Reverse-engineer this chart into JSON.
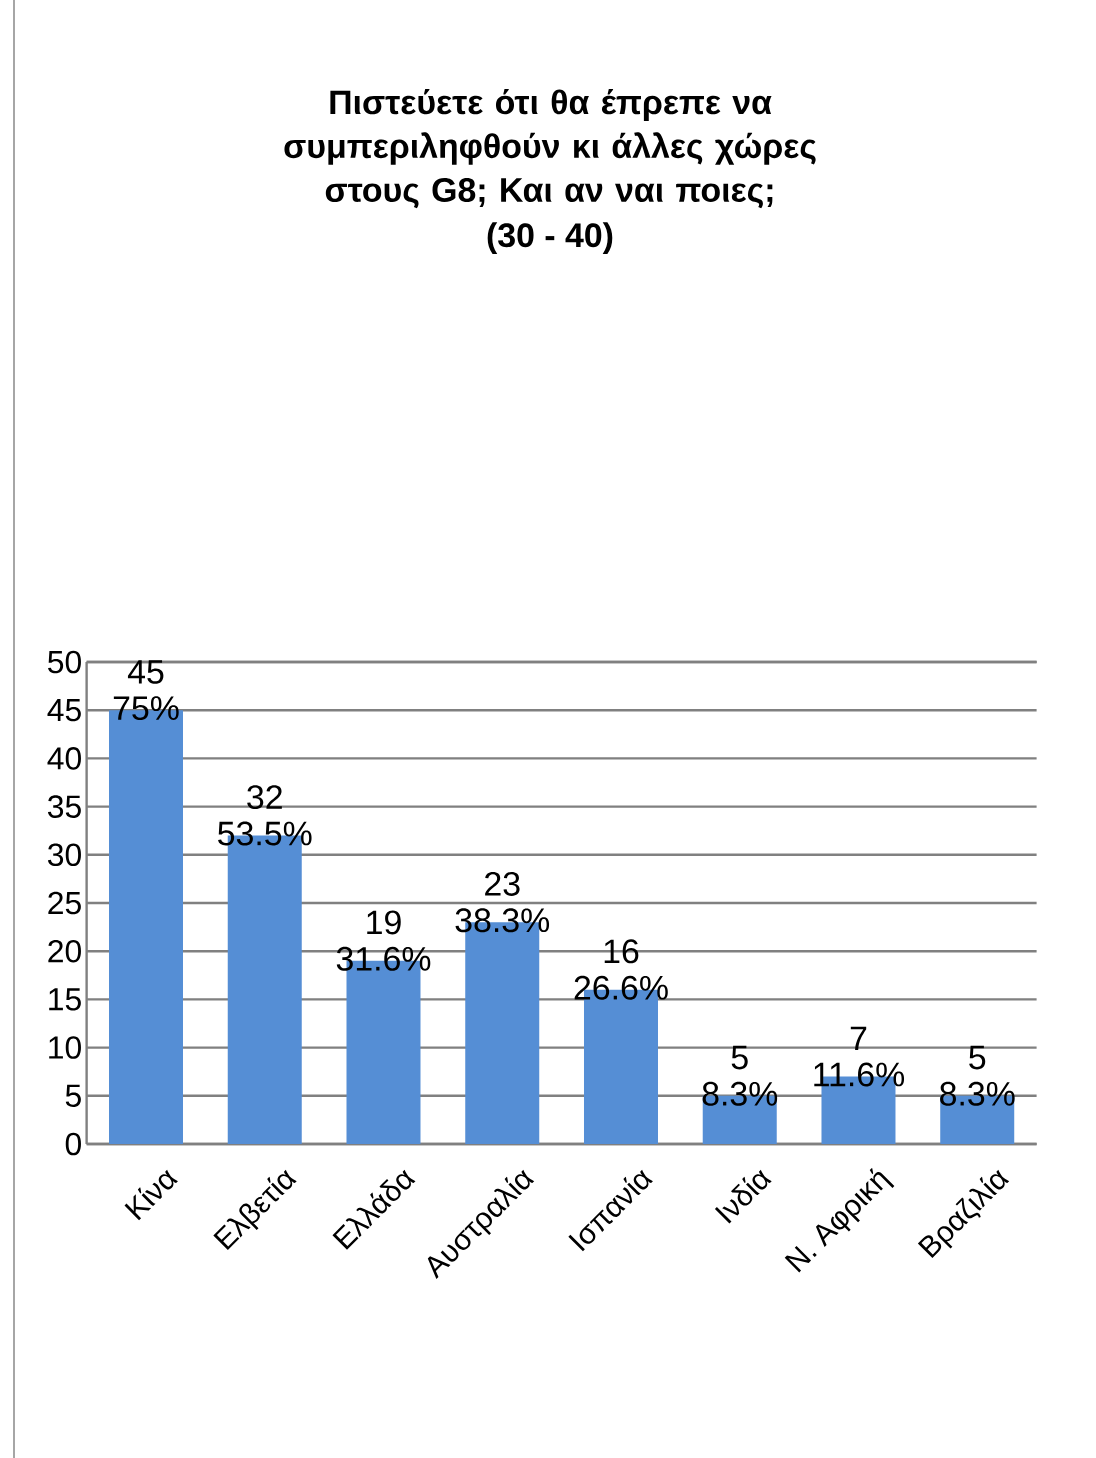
{
  "chart_data": {
    "type": "bar",
    "title": "Πιστεύετε ότι θα έπρεπε να συμπεριληφθούν κι άλλες χώρες στους G8; Και αν ναι ποιες;",
    "subtitle": "(30 - 40)",
    "categories": [
      "Κίνα",
      "Ελβετία",
      "Ελλάδα",
      "Αυστραλία",
      "Ισπανία",
      "Ινδία",
      "Ν. Αφρική",
      "Βραζιλία"
    ],
    "values": [
      45,
      32,
      19,
      23,
      16,
      5,
      7,
      5
    ],
    "color": "#558ed5",
    "ylim": [
      0,
      50
    ],
    "yticks": [
      0,
      5,
      10,
      15,
      20,
      25,
      30,
      35,
      40,
      45,
      50
    ],
    "grid": "y",
    "data_labels": true,
    "annotations": [
      {
        "text": "75%",
        "x": "Κίνα",
        "y": 45
      },
      {
        "text": "53.5%",
        "x": "Ελβετία",
        "y": 32
      },
      {
        "text": "31.6%",
        "x": "Ελλάδα",
        "y": 19
      },
      {
        "text": "38.3%",
        "x": "Αυστραλία",
        "y": 23
      },
      {
        "text": "26.6%",
        "x": "Ισπανία",
        "y": 16
      },
      {
        "text": "8.3%",
        "x": "Ινδία",
        "y": 5
      },
      {
        "text": "11.6%",
        "x": "Ν. Αφρική",
        "y": 7
      },
      {
        "text": "8.3%",
        "x": "Βραζιλία",
        "y": 5
      }
    ]
  }
}
